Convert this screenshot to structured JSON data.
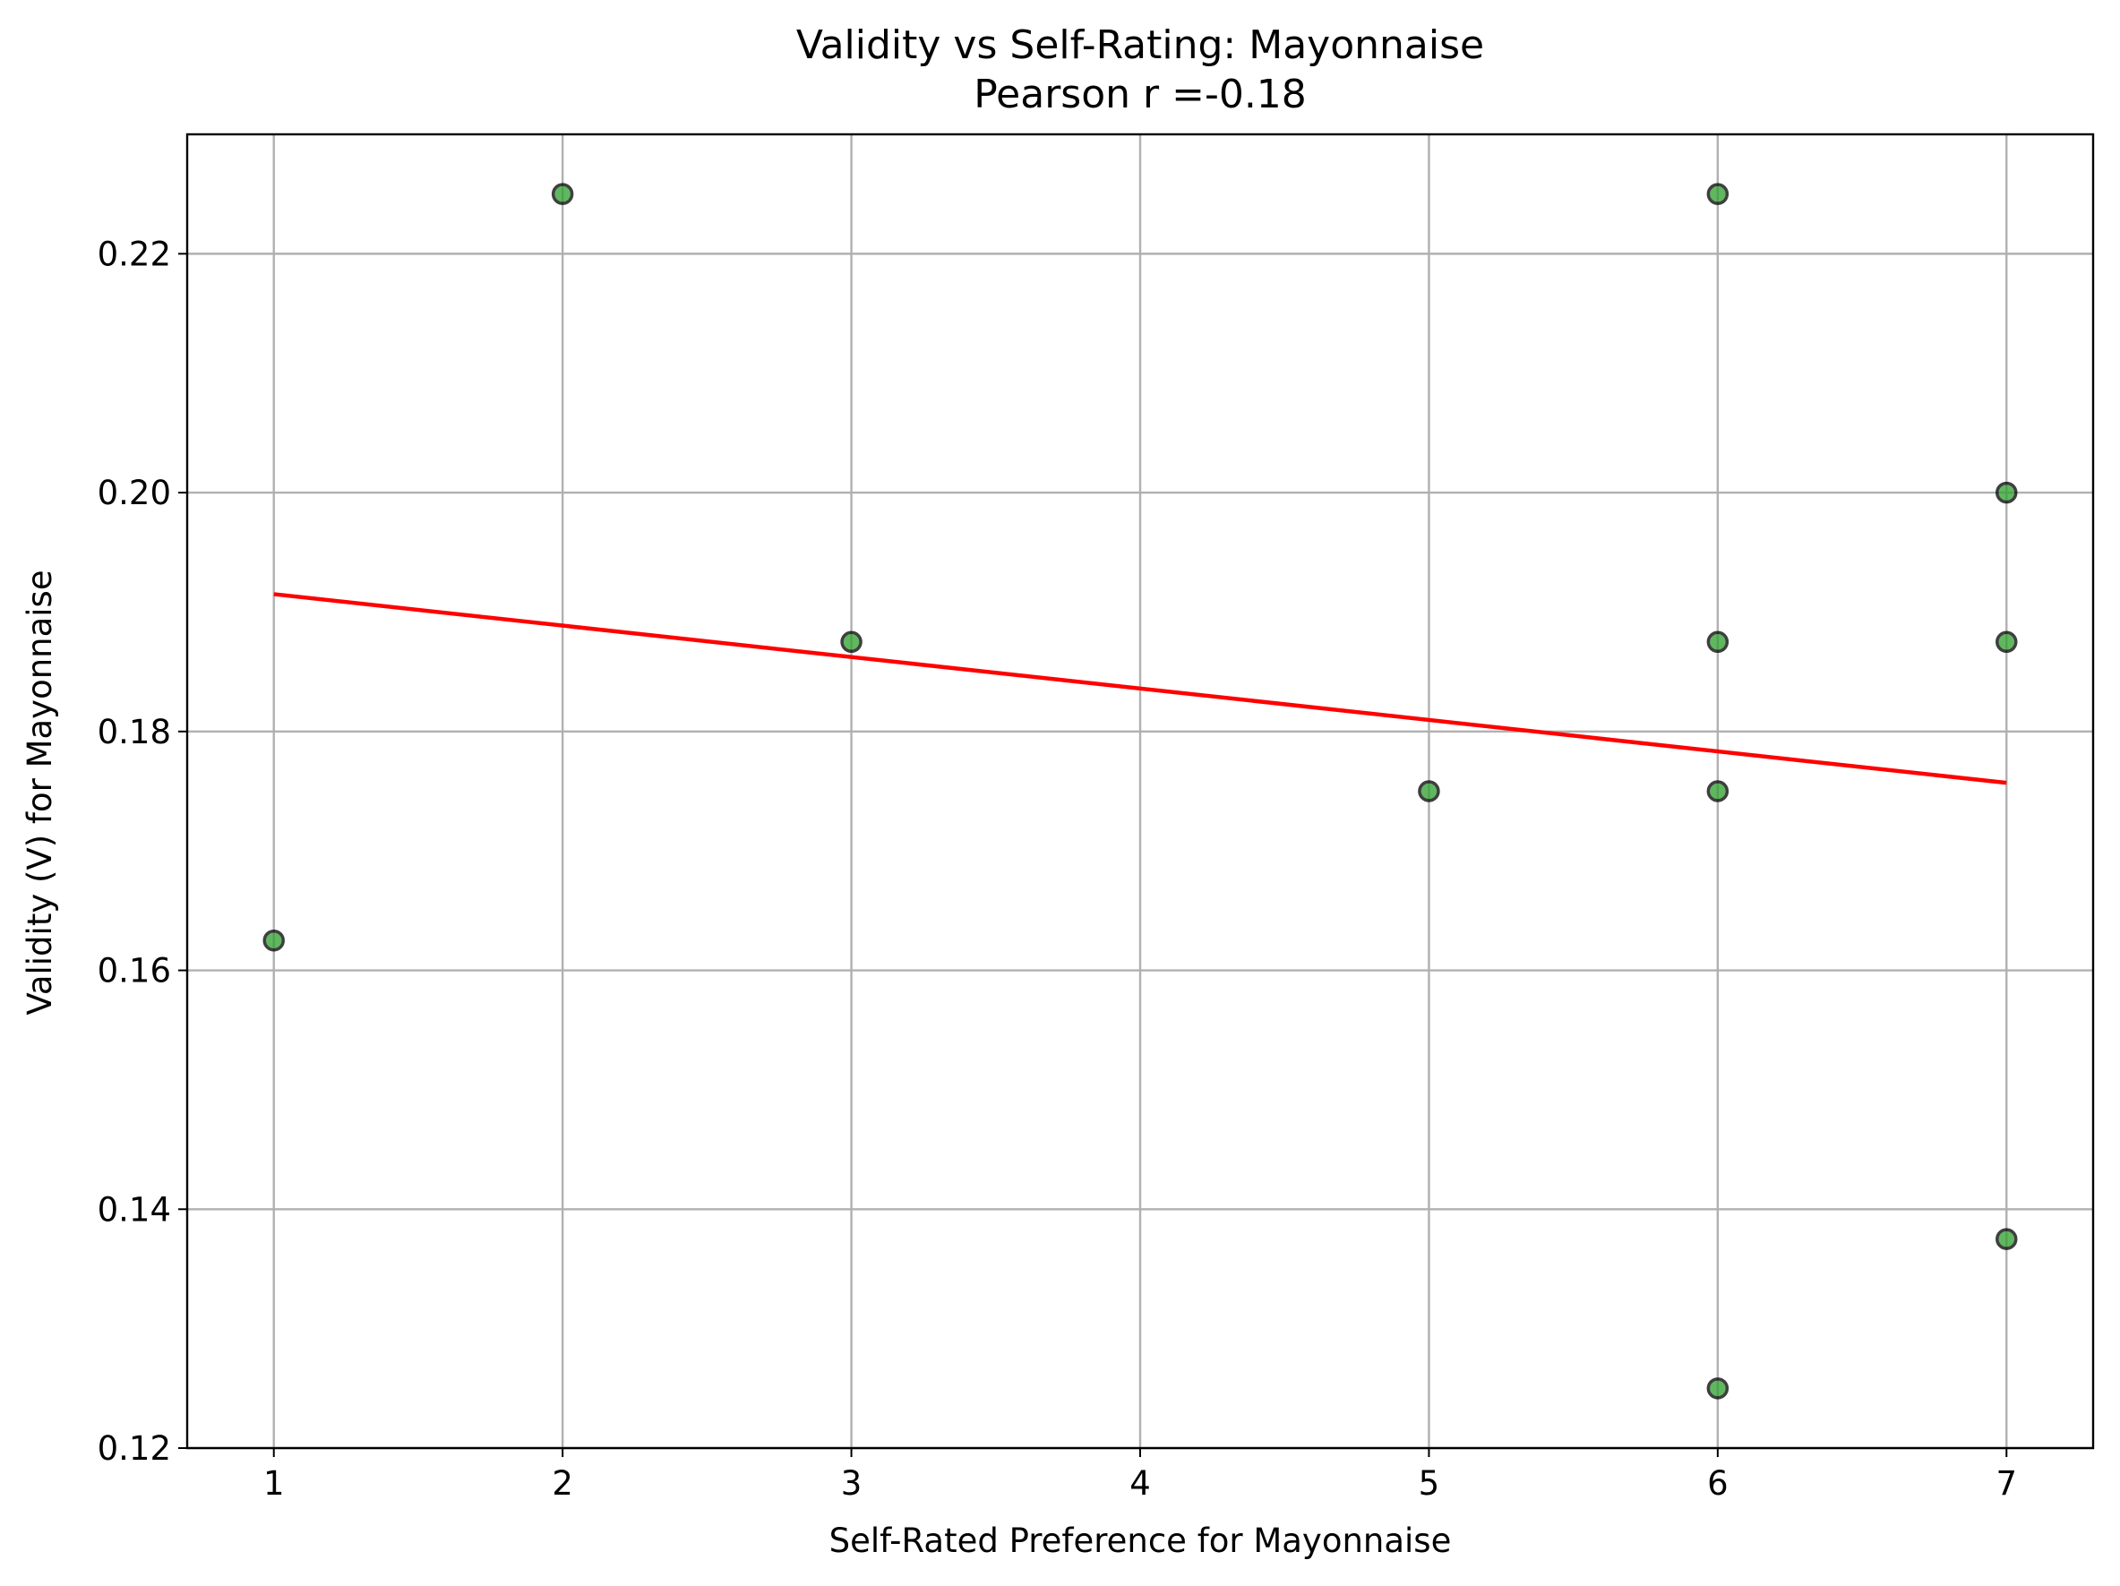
{
  "chart_data": {
    "type": "scatter",
    "title": "Validity vs Self-Rating: Mayonnaise",
    "subtitle": "Pearson r =-0.18",
    "xlabel": "Self-Rated Preference for Mayonnaise",
    "ylabel": "Validity (V) for Mayonnaise",
    "xlim": [
      0.7,
      7.3
    ],
    "ylim": [
      0.12,
      0.23
    ],
    "xticks": [
      1,
      2,
      3,
      4,
      5,
      6,
      7
    ],
    "xtick_labels": [
      "1",
      "2",
      "3",
      "4",
      "5",
      "6",
      "7"
    ],
    "yticks": [
      0.12,
      0.14,
      0.16,
      0.18,
      0.2,
      0.22
    ],
    "ytick_labels": [
      "0.12",
      "0.14",
      "0.16",
      "0.18",
      "0.20",
      "0.22"
    ],
    "grid": true,
    "points": [
      {
        "x": 1,
        "y": 0.1625
      },
      {
        "x": 2,
        "y": 0.225
      },
      {
        "x": 3,
        "y": 0.1875
      },
      {
        "x": 5,
        "y": 0.175
      },
      {
        "x": 6,
        "y": 0.225
      },
      {
        "x": 6,
        "y": 0.1875
      },
      {
        "x": 6,
        "y": 0.175
      },
      {
        "x": 6,
        "y": 0.125
      },
      {
        "x": 7,
        "y": 0.2
      },
      {
        "x": 7,
        "y": 0.1875
      },
      {
        "x": 7,
        "y": 0.1375
      }
    ],
    "trendline": {
      "x": [
        1,
        7
      ],
      "y": [
        0.1915,
        0.1757
      ]
    },
    "colors": {
      "marker_fill": "#2ca02c",
      "marker_edge": "#000000",
      "trendline": "#ff0000",
      "grid": "#b0b0b0"
    }
  }
}
